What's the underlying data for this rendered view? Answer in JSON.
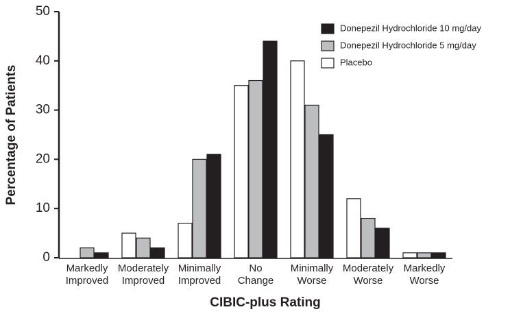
{
  "chart_data": {
    "type": "bar",
    "x_label": "CIBIC-plus Rating",
    "y_label": "Percentage of Patients",
    "categories": [
      [
        "Markedly",
        "Improved"
      ],
      [
        "Moderately",
        "Improved"
      ],
      [
        "Minimally",
        "Improved"
      ],
      [
        "No",
        "Change"
      ],
      [
        "Minimally",
        "Worse"
      ],
      [
        "Moderately",
        "Worse"
      ],
      [
        "Markedly",
        "Worse"
      ]
    ],
    "series": [
      {
        "name": "Donepezil Hydrochloride 10 mg/day",
        "color": "#231f20",
        "values": [
          1,
          2,
          21,
          44,
          25,
          6,
          1
        ]
      },
      {
        "name": "Donepezil Hydrochloride 5 mg/day",
        "color": "#bcbec0",
        "values": [
          2,
          4,
          20,
          36,
          31,
          8,
          1
        ]
      },
      {
        "name": "Placebo",
        "color": "#ffffff",
        "values": [
          0,
          5,
          7,
          35,
          40,
          12,
          1
        ]
      }
    ],
    "ylim": [
      0,
      50
    ],
    "yticks": [
      0,
      10,
      20,
      30,
      40,
      50
    ],
    "grid": false,
    "legend": "top-right"
  }
}
